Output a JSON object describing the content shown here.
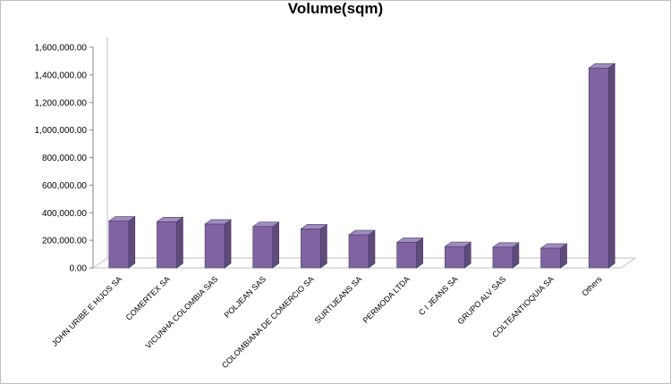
{
  "chart_data": {
    "type": "bar",
    "title": "Volume(sqm)",
    "xlabel": "",
    "ylabel": "",
    "categories": [
      "JOHN URIBE E HIJOS SA",
      "COMERTEX SA",
      "VICUNHA COLOMBIA SAS",
      "POLJEAN SAS",
      "COLOMBIANA DE COMERCIO SA",
      "SURTIJEANS SA",
      "PERMODA LTDA",
      "C I JEANS SA",
      "GRUPO ALV SAS",
      "COLTEANTIOQUIA SA",
      "Others"
    ],
    "values": [
      340000,
      335000,
      318000,
      300000,
      283000,
      240000,
      185000,
      155000,
      150000,
      143000,
      1450000
    ],
    "ylim": [
      0,
      1600000
    ],
    "yticks": [
      "0.00",
      "200,000.00",
      "400,000.00",
      "600,000.00",
      "800,000.00",
      "1,000,000.00",
      "1,200,000.00",
      "1,400,000.00",
      "1,600,000.00"
    ],
    "grid": false,
    "legend": "none",
    "style": "3d-column",
    "bar_color": "#8064a2",
    "bar_side_color": "#5f4a7c",
    "bar_top_color": "#a08cc0"
  }
}
